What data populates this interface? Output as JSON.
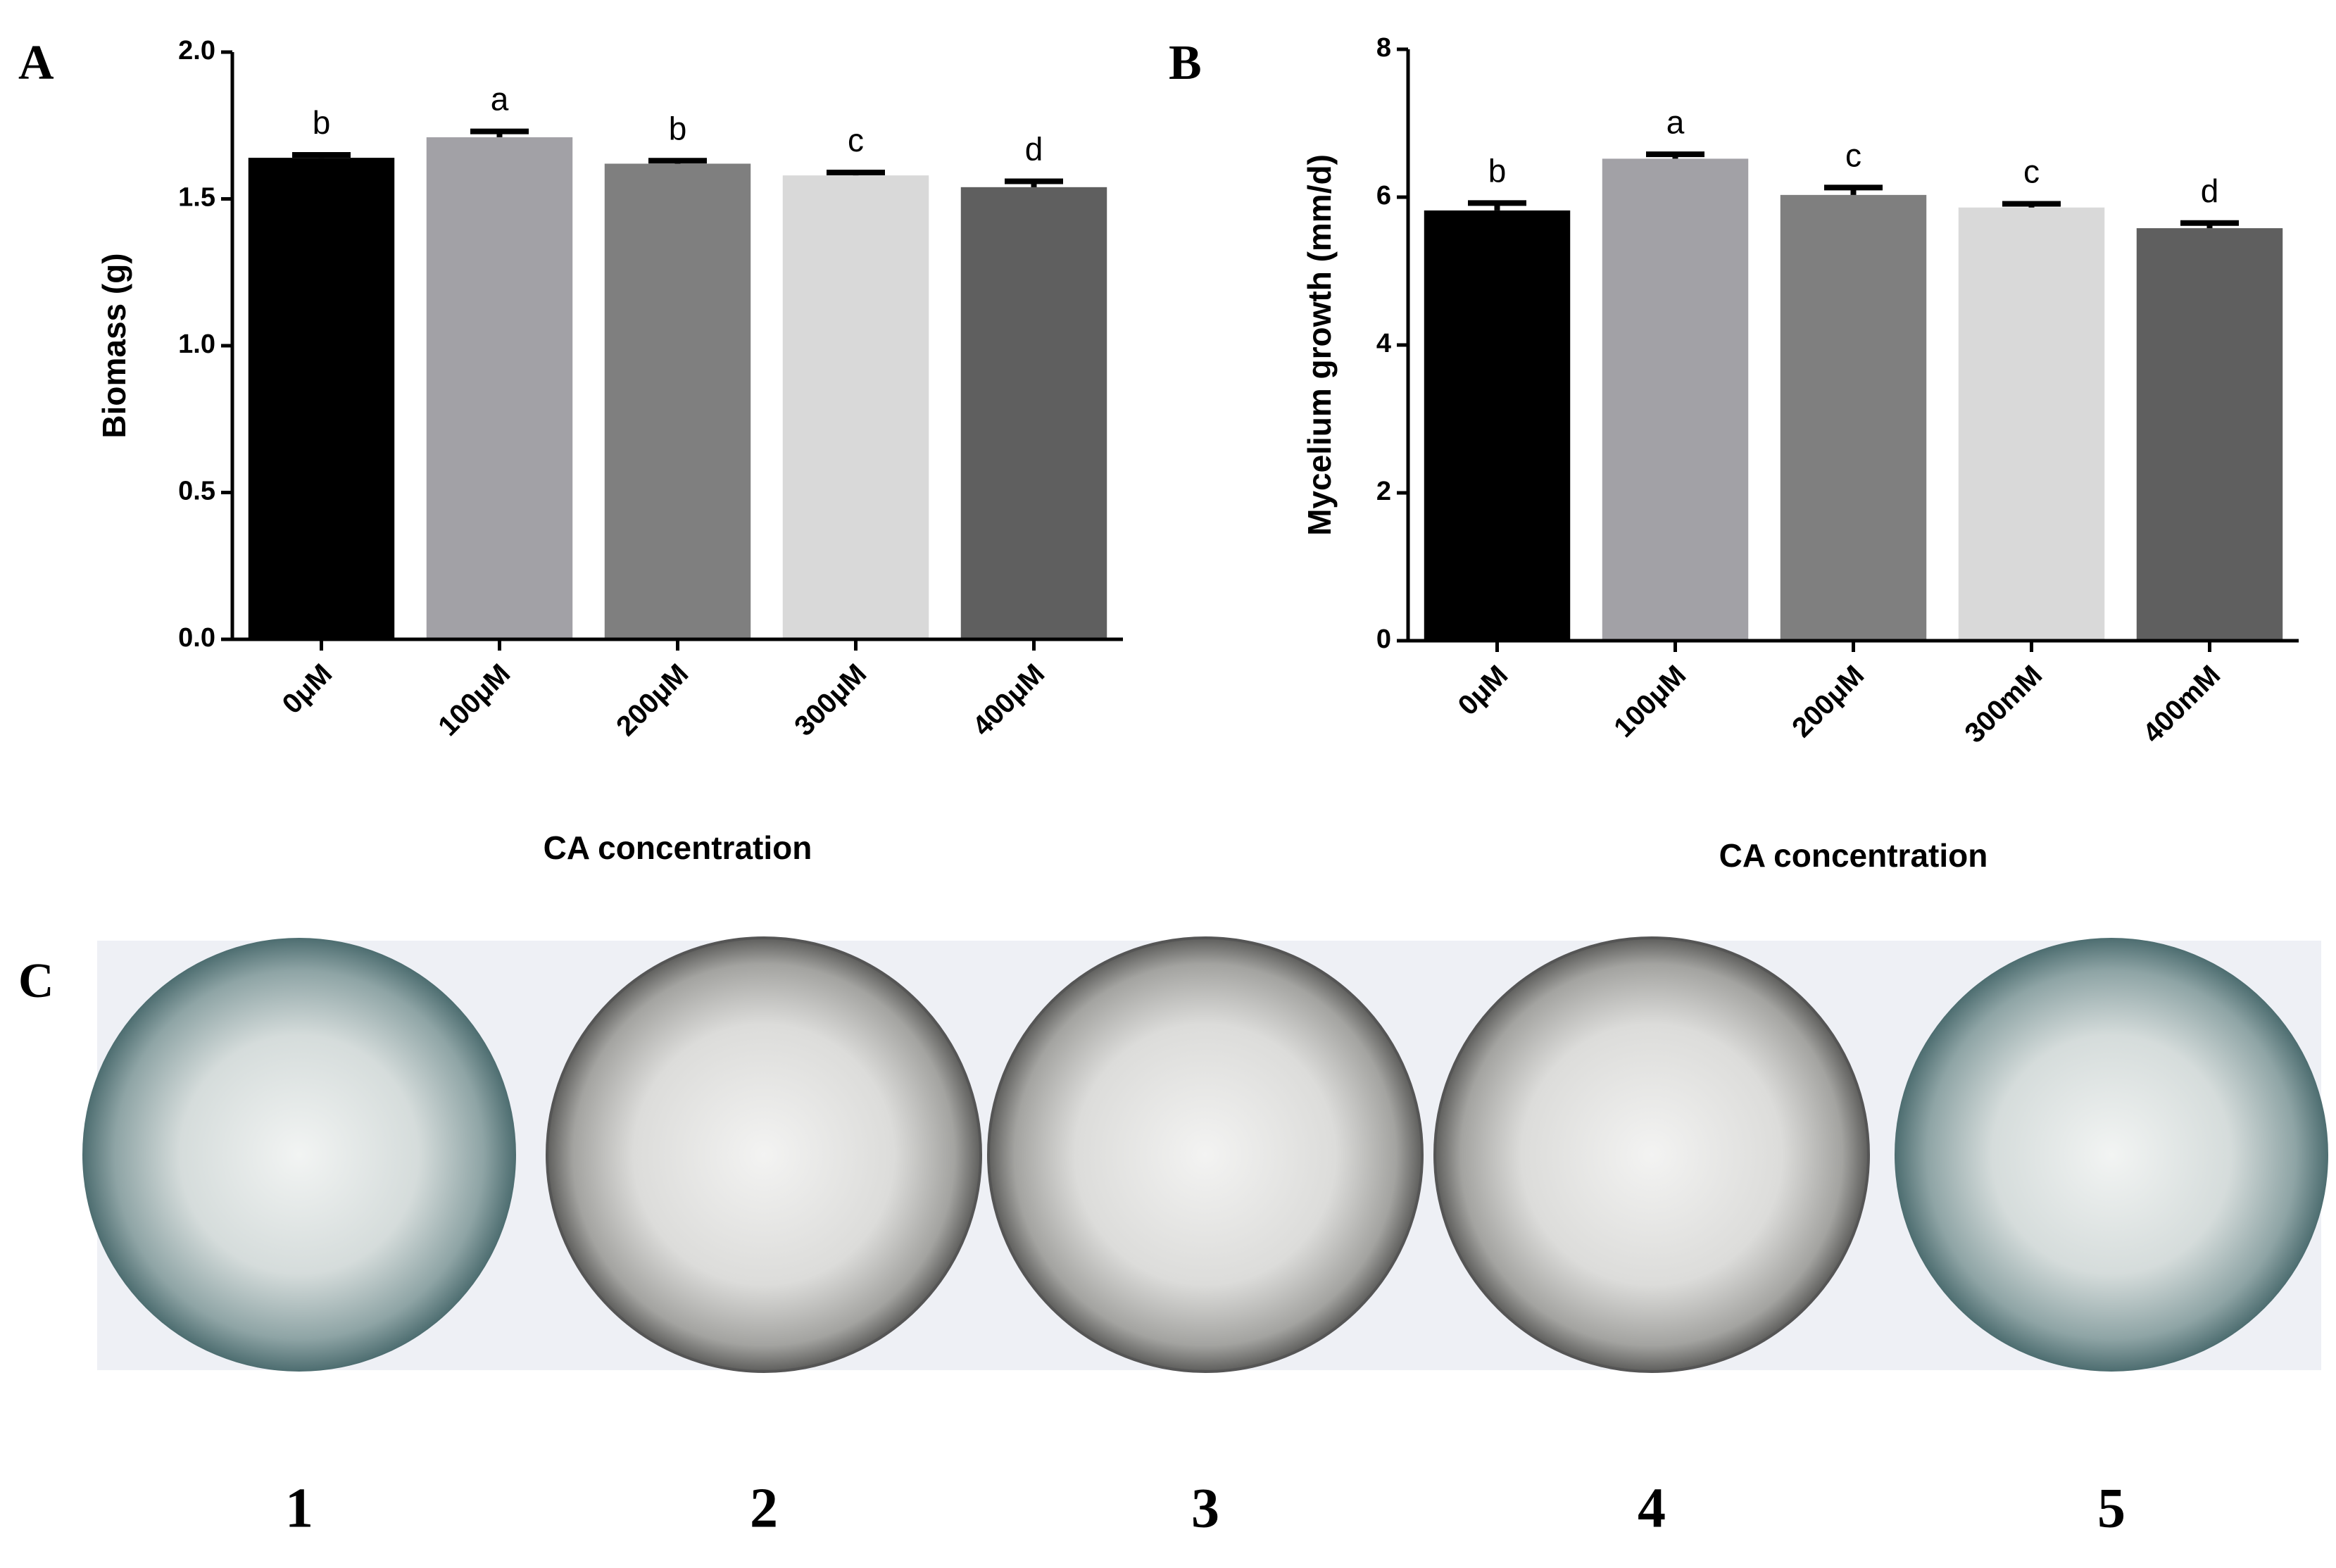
{
  "chart_data": [
    {
      "type": "bar",
      "panel": "A",
      "y_label": "Biomass (g)",
      "x_label": "CA concentration",
      "categories": [
        "0μM",
        "100μM",
        "200μM",
        "300μM",
        "400μM"
      ],
      "values": [
        1.64,
        1.71,
        1.62,
        1.58,
        1.54
      ],
      "errors": [
        0.01,
        0.02,
        0.01,
        0.01,
        0.02
      ],
      "annotations": [
        "b",
        "a",
        "b",
        "c",
        "d"
      ],
      "colors": [
        "#000000",
        "#a2a1a6",
        "#7f7f7f",
        "#d9d9d9",
        "#5f5f5f"
      ],
      "ylim": [
        0,
        2
      ],
      "yticks": [
        {
          "value": 0,
          "label": "0.0"
        },
        0.5,
        {
          "value": 1,
          "label": "1.0"
        },
        1.5,
        {
          "value": 2,
          "label": "2.0"
        }
      ]
    },
    {
      "type": "bar",
      "panel": "B",
      "y_label": "Mycelium growth (mm/d)",
      "x_label": "CA concentration",
      "categories": [
        "0μM",
        "100μM",
        "200μM",
        "300mM",
        "400mM"
      ],
      "values": [
        5.82,
        6.52,
        6.03,
        5.86,
        5.58
      ],
      "errors": [
        0.1,
        0.06,
        0.1,
        0.05,
        0.07
      ],
      "annotations": [
        "b",
        "a",
        "c",
        "c",
        "d"
      ],
      "colors": [
        "#000000",
        "#a2a1a6",
        "#7f7f7f",
        "#d9d9d9",
        "#5f5f5f"
      ],
      "ylim": [
        0,
        8
      ],
      "yticks": [
        0,
        2,
        4,
        6,
        8
      ]
    }
  ],
  "photo_panel": {
    "panel": "C",
    "plates": [
      "1",
      "2",
      "3",
      "4",
      "5"
    ]
  }
}
